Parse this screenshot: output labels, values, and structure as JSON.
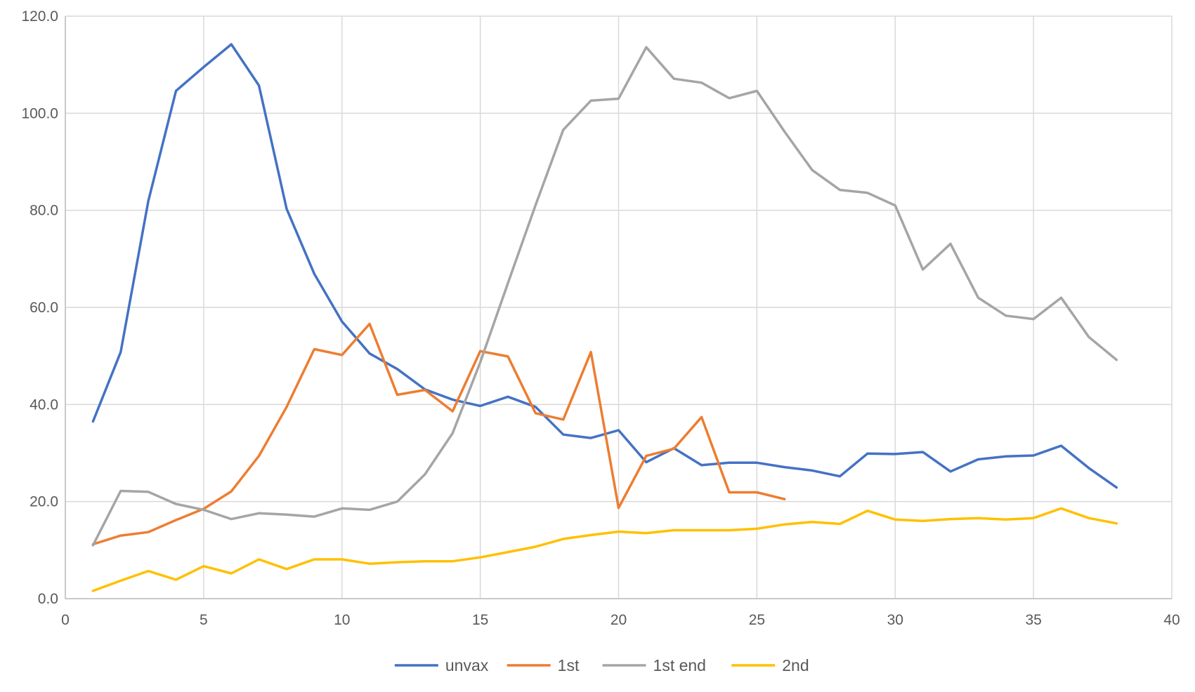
{
  "chart_data": {
    "type": "line",
    "title": "",
    "xlabel": "",
    "ylabel": "",
    "xlim": [
      0,
      40
    ],
    "ylim": [
      0,
      120
    ],
    "x_ticks": [
      0,
      5,
      10,
      15,
      20,
      25,
      30,
      35,
      40
    ],
    "x_tick_labels": [
      "0",
      "5",
      "10",
      "15",
      "20",
      "25",
      "30",
      "35",
      "40"
    ],
    "y_ticks": [
      0,
      20,
      40,
      60,
      80,
      100,
      120
    ],
    "y_tick_labels": [
      "0.0",
      "20.0",
      "40.0",
      "60.0",
      "80.0",
      "100.0",
      "120.0"
    ],
    "grid": true,
    "legend_position": "bottom",
    "series": [
      {
        "name": "unvax",
        "color": "#4472C4",
        "x": [
          1,
          2,
          3,
          4,
          5,
          6,
          7,
          8,
          9,
          10,
          11,
          12,
          13,
          14,
          15,
          16,
          17,
          18,
          19,
          20,
          21,
          22,
          23,
          24,
          25,
          26,
          27,
          28,
          29,
          30,
          31,
          32,
          33,
          34,
          35,
          36,
          37,
          38
        ],
        "y": [
          36.5,
          50.8,
          81.9,
          104.6,
          109.5,
          114.2,
          105.7,
          80.3,
          66.9,
          57.1,
          50.5,
          47.3,
          43.1,
          41.0,
          39.7,
          41.6,
          39.5,
          33.8,
          33.1,
          34.7,
          28.1,
          31.0,
          27.5,
          28.0,
          28.0,
          27.1,
          26.4,
          25.2,
          29.9,
          29.8,
          30.2,
          26.2,
          28.7,
          29.3,
          29.5,
          31.5,
          26.9,
          22.9
        ]
      },
      {
        "name": "1st",
        "color": "#ED7D31",
        "x": [
          1,
          2,
          3,
          4,
          5,
          6,
          7,
          8,
          9,
          10,
          11,
          12,
          13,
          14,
          15,
          16,
          17,
          18,
          19,
          20,
          21,
          22,
          23,
          24,
          25,
          26
        ],
        "y": [
          11.2,
          13.0,
          13.7,
          16.2,
          18.5,
          22.1,
          29.4,
          39.5,
          51.4,
          50.2,
          56.6,
          42.0,
          43.0,
          38.6,
          51.0,
          49.9,
          38.2,
          36.9,
          50.8,
          18.7,
          29.4,
          30.9,
          37.4,
          21.9,
          21.9,
          20.5
        ]
      },
      {
        "name": "1st end",
        "color": "#A5A5A5",
        "x": [
          1,
          2,
          3,
          4,
          5,
          6,
          7,
          8,
          9,
          10,
          11,
          12,
          13,
          14,
          15,
          16,
          17,
          18,
          19,
          20,
          21,
          22,
          23,
          24,
          25,
          26,
          27,
          28,
          29,
          30,
          31,
          32,
          33,
          34,
          35,
          36,
          37,
          38
        ],
        "y": [
          11.0,
          22.2,
          22.0,
          19.5,
          18.3,
          16.4,
          17.6,
          17.3,
          16.9,
          18.6,
          18.3,
          20.0,
          25.6,
          34.1,
          48.7,
          65.0,
          81.1,
          96.6,
          102.6,
          103.0,
          113.6,
          107.1,
          106.3,
          103.1,
          104.6,
          96.2,
          88.3,
          84.2,
          83.6,
          81.0,
          67.8,
          73.1,
          62.0,
          58.3,
          57.6,
          62.0,
          53.9,
          49.2
        ]
      },
      {
        "name": "2nd",
        "color": "#FFC000",
        "x": [
          1,
          2,
          3,
          4,
          5,
          6,
          7,
          8,
          9,
          10,
          11,
          12,
          13,
          14,
          15,
          16,
          17,
          18,
          19,
          20,
          21,
          22,
          23,
          24,
          25,
          26,
          27,
          28,
          29,
          30,
          31,
          32,
          33,
          34,
          35,
          36,
          37,
          38
        ],
        "y": [
          1.6,
          3.7,
          5.7,
          3.9,
          6.7,
          5.2,
          8.1,
          6.1,
          8.1,
          8.1,
          7.2,
          7.5,
          7.7,
          7.7,
          8.5,
          9.6,
          10.7,
          12.3,
          13.1,
          13.8,
          13.5,
          14.1,
          14.1,
          14.1,
          14.4,
          15.3,
          15.8,
          15.4,
          18.1,
          16.3,
          16.0,
          16.4,
          16.6,
          16.3,
          16.6,
          18.6,
          16.6,
          15.5
        ]
      }
    ]
  }
}
